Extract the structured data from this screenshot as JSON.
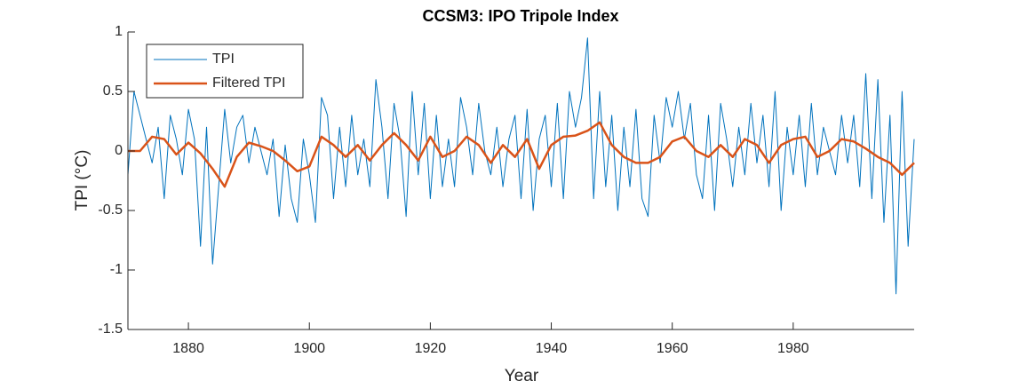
{
  "chart_data": {
    "type": "line",
    "title": "CCSM3: IPO Tripole Index",
    "xlabel": "Year",
    "ylabel": "TPI (°C)",
    "xlim": [
      1870,
      2000
    ],
    "xticks": [
      1880,
      1900,
      1920,
      1940,
      1960,
      1980
    ],
    "ylim": [
      -1.5,
      1
    ],
    "yticks": [
      -1.5,
      -1,
      -0.5,
      0,
      0.5,
      1
    ],
    "legend": "upper left",
    "series": [
      {
        "name": "TPI",
        "color": "#0072BD",
        "x": [
          1870,
          1871,
          1872,
          1873,
          1874,
          1875,
          1876,
          1877,
          1878,
          1879,
          1880,
          1881,
          1882,
          1883,
          1884,
          1885,
          1886,
          1887,
          1888,
          1889,
          1890,
          1891,
          1892,
          1893,
          1894,
          1895,
          1896,
          1897,
          1898,
          1899,
          1900,
          1901,
          1902,
          1903,
          1904,
          1905,
          1906,
          1907,
          1908,
          1909,
          1910,
          1911,
          1912,
          1913,
          1914,
          1915,
          1916,
          1917,
          1918,
          1919,
          1920,
          1921,
          1922,
          1923,
          1924,
          1925,
          1926,
          1927,
          1928,
          1929,
          1930,
          1931,
          1932,
          1933,
          1934,
          1935,
          1936,
          1937,
          1938,
          1939,
          1940,
          1941,
          1942,
          1943,
          1944,
          1945,
          1946,
          1947,
          1948,
          1949,
          1950,
          1951,
          1952,
          1953,
          1954,
          1955,
          1956,
          1957,
          1958,
          1959,
          1960,
          1961,
          1962,
          1963,
          1964,
          1965,
          1966,
          1967,
          1968,
          1969,
          1970,
          1971,
          1972,
          1973,
          1974,
          1975,
          1976,
          1977,
          1978,
          1979,
          1980,
          1981,
          1982,
          1983,
          1984,
          1985,
          1986,
          1987,
          1988,
          1989,
          1990,
          1991,
          1992,
          1993,
          1994,
          1995,
          1996,
          1997,
          1998,
          1999,
          2000
        ],
        "values": [
          -0.2,
          0.5,
          0.3,
          0.1,
          -0.1,
          0.2,
          -0.4,
          0.3,
          0.1,
          -0.2,
          0.35,
          0.1,
          -0.8,
          0.2,
          -0.95,
          -0.3,
          0.35,
          -0.1,
          0.2,
          0.3,
          -0.1,
          0.2,
          0.0,
          -0.2,
          0.1,
          -0.55,
          0.05,
          -0.4,
          -0.6,
          0.1,
          -0.2,
          -0.6,
          0.45,
          0.3,
          -0.4,
          0.2,
          -0.3,
          0.3,
          -0.2,
          0.1,
          -0.3,
          0.6,
          0.2,
          -0.4,
          0.4,
          0.1,
          -0.55,
          0.5,
          -0.2,
          0.4,
          -0.4,
          0.3,
          -0.3,
          0.1,
          -0.3,
          0.45,
          0.2,
          -0.2,
          0.4,
          0.0,
          -0.2,
          0.2,
          -0.3,
          0.1,
          0.3,
          -0.4,
          0.35,
          -0.5,
          0.1,
          0.3,
          -0.3,
          0.4,
          -0.4,
          0.5,
          0.2,
          0.45,
          0.95,
          -0.4,
          0.5,
          -0.3,
          0.3,
          -0.5,
          0.2,
          -0.3,
          0.35,
          -0.4,
          -0.55,
          0.3,
          -0.1,
          0.45,
          0.2,
          0.5,
          0.1,
          0.4,
          -0.2,
          -0.4,
          0.3,
          -0.5,
          0.4,
          0.1,
          -0.3,
          0.2,
          -0.2,
          0.4,
          -0.1,
          0.3,
          -0.3,
          0.5,
          -0.5,
          0.2,
          -0.2,
          0.3,
          -0.3,
          0.4,
          -0.2,
          0.2,
          0.0,
          -0.2,
          0.3,
          -0.1,
          0.3,
          -0.3,
          0.65,
          -0.4,
          0.6,
          -0.6,
          0.3,
          -1.2,
          0.5,
          -0.8,
          0.1
        ]
      },
      {
        "name": "Filtered TPI",
        "color": "#D95319",
        "x": [
          1870,
          1872,
          1874,
          1876,
          1878,
          1880,
          1882,
          1884,
          1886,
          1888,
          1890,
          1892,
          1894,
          1896,
          1898,
          1900,
          1902,
          1904,
          1906,
          1908,
          1910,
          1912,
          1914,
          1916,
          1918,
          1920,
          1922,
          1924,
          1926,
          1928,
          1930,
          1932,
          1934,
          1936,
          1938,
          1940,
          1942,
          1944,
          1946,
          1948,
          1950,
          1952,
          1954,
          1956,
          1958,
          1960,
          1962,
          1964,
          1966,
          1968,
          1970,
          1972,
          1974,
          1976,
          1978,
          1980,
          1982,
          1984,
          1986,
          1988,
          1990,
          1992,
          1994,
          1996,
          1998,
          2000
        ],
        "values": [
          0,
          0,
          0.12,
          0.1,
          -0.03,
          0.07,
          -0.02,
          -0.15,
          -0.3,
          -0.05,
          0.07,
          0.04,
          0.0,
          -0.08,
          -0.17,
          -0.13,
          0.12,
          0.05,
          -0.05,
          0.05,
          -0.08,
          0.05,
          0.15,
          0.05,
          -0.08,
          0.12,
          -0.05,
          0.0,
          0.12,
          0.05,
          -0.1,
          0.05,
          -0.05,
          0.1,
          -0.15,
          0.05,
          0.12,
          0.13,
          0.17,
          0.24,
          0.05,
          -0.05,
          -0.1,
          -0.1,
          -0.05,
          0.08,
          0.12,
          0.0,
          -0.05,
          0.05,
          -0.05,
          0.1,
          0.05,
          -0.1,
          0.05,
          0.1,
          0.12,
          -0.05,
          0.0,
          0.1,
          0.08,
          0.02,
          -0.05,
          -0.1,
          -0.2,
          -0.1
        ]
      }
    ]
  }
}
